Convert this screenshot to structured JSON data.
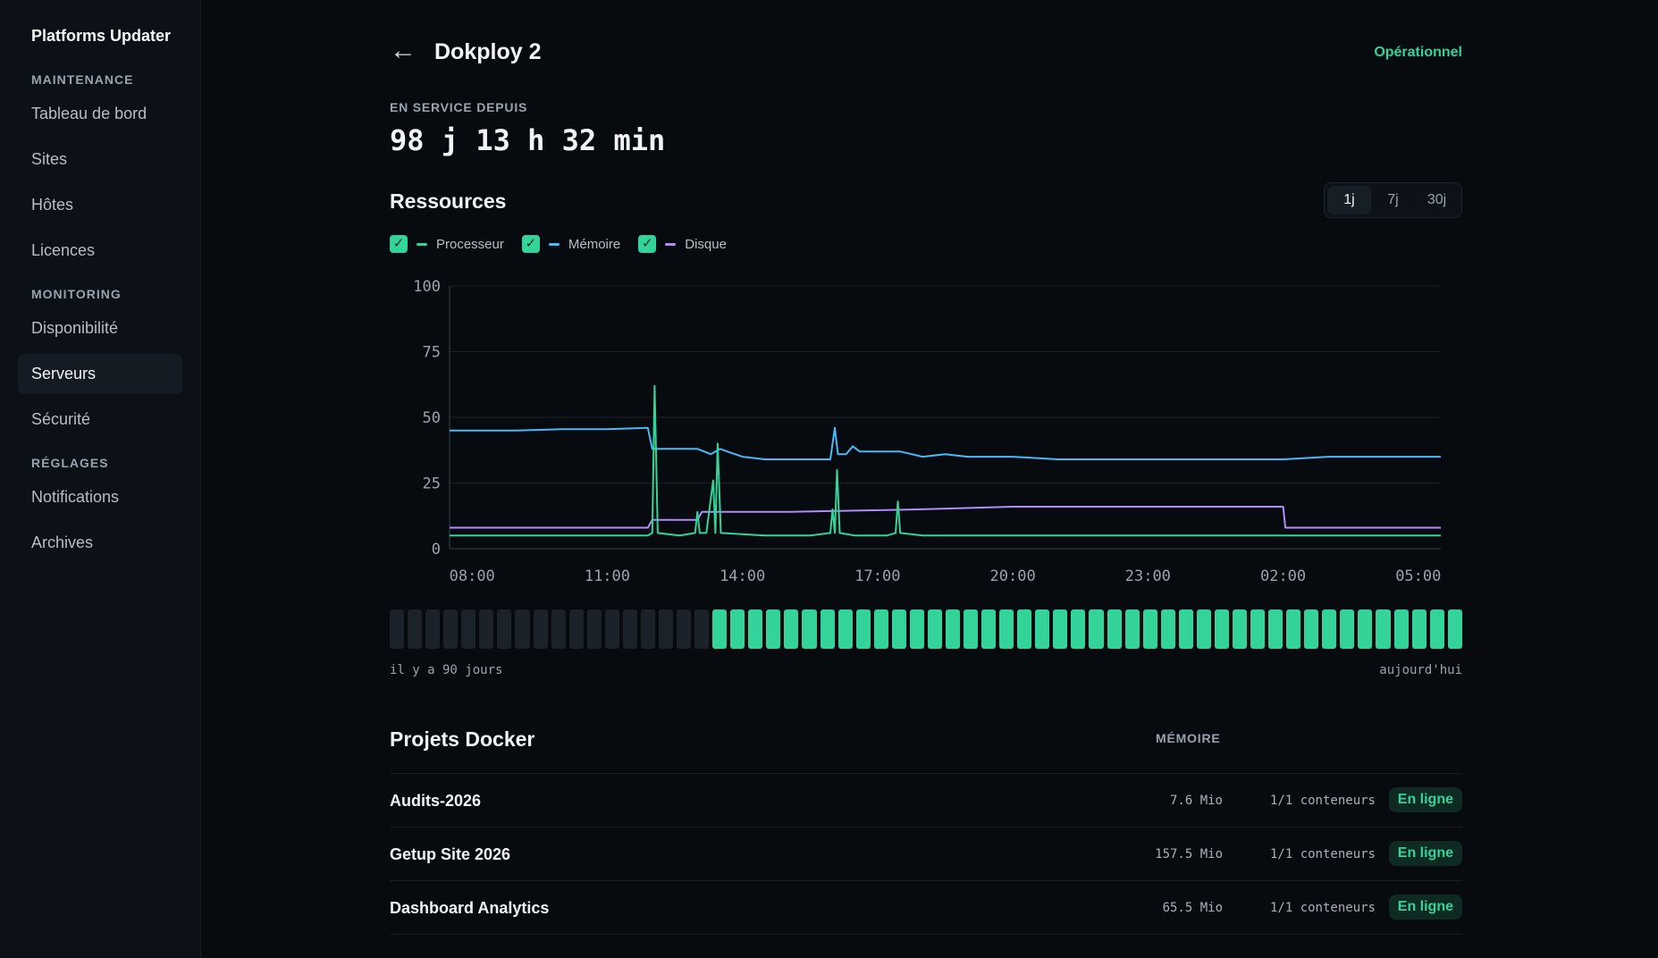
{
  "sidebar": {
    "brand": "Platforms Updater",
    "sections": [
      {
        "label": "MAINTENANCE",
        "items": [
          "Tableau de bord",
          "Sites",
          "Hôtes",
          "Licences"
        ]
      },
      {
        "label": "MONITORING",
        "items": [
          "Disponibilité",
          "Serveurs",
          "Sécurité"
        ]
      },
      {
        "label": "RÉGLAGES",
        "items": [
          "Notifications",
          "Archives"
        ]
      }
    ],
    "active": "Serveurs"
  },
  "header": {
    "back_glyph": "←",
    "title": "Dokploy 2",
    "status": "Opérationnel"
  },
  "uptime": {
    "label": "EN SERVICE DEPUIS",
    "value": "98 j 13 h 32 min"
  },
  "resources": {
    "title": "Ressources",
    "ranges": [
      "1j",
      "7j",
      "30j"
    ],
    "active_range": "1j",
    "legend": [
      {
        "label": "Processeur",
        "color": "#34d399"
      },
      {
        "label": "Mémoire",
        "color": "#4cb8f5"
      },
      {
        "label": "Disque",
        "color": "#b38cf7"
      }
    ]
  },
  "chart_data": {
    "type": "line",
    "ylim": [
      0,
      100
    ],
    "yticks": [
      "0",
      "25",
      "50",
      "75",
      "100"
    ],
    "xlim": [
      7.5,
      29.5
    ],
    "xticks": [
      {
        "h": 8,
        "label": "08:00"
      },
      {
        "h": 11,
        "label": "11:00"
      },
      {
        "h": 14,
        "label": "14:00"
      },
      {
        "h": 17,
        "label": "17:00"
      },
      {
        "h": 20,
        "label": "20:00"
      },
      {
        "h": 23,
        "label": "23:00"
      },
      {
        "h": 26,
        "label": "02:00"
      },
      {
        "h": 29,
        "label": "05:00"
      }
    ],
    "series": [
      {
        "name": "Processeur",
        "color": "#34d399",
        "points": [
          [
            7.5,
            5
          ],
          [
            9,
            5
          ],
          [
            10.5,
            5
          ],
          [
            11.5,
            5
          ],
          [
            11.9,
            5
          ],
          [
            12,
            6
          ],
          [
            12.05,
            62
          ],
          [
            12.12,
            6
          ],
          [
            12.6,
            5
          ],
          [
            12.95,
            6
          ],
          [
            13.0,
            14
          ],
          [
            13.05,
            6
          ],
          [
            13.2,
            6
          ],
          [
            13.35,
            26
          ],
          [
            13.4,
            6
          ],
          [
            13.45,
            40
          ],
          [
            13.52,
            6
          ],
          [
            14.5,
            5
          ],
          [
            15.5,
            5
          ],
          [
            15.95,
            6
          ],
          [
            16.0,
            15
          ],
          [
            16.05,
            6
          ],
          [
            16.1,
            30
          ],
          [
            16.16,
            6
          ],
          [
            16.5,
            5
          ],
          [
            17.2,
            5
          ],
          [
            17.4,
            6
          ],
          [
            17.45,
            18
          ],
          [
            17.5,
            6
          ],
          [
            18,
            5
          ],
          [
            20,
            5
          ],
          [
            22,
            5
          ],
          [
            24,
            5
          ],
          [
            26,
            5
          ],
          [
            28,
            5
          ],
          [
            29.5,
            5
          ]
        ]
      },
      {
        "name": "Mémoire",
        "color": "#4cb8f5",
        "points": [
          [
            7.5,
            45
          ],
          [
            9,
            45
          ],
          [
            10,
            45.5
          ],
          [
            11,
            45.5
          ],
          [
            11.9,
            46
          ],
          [
            12.0,
            38
          ],
          [
            13,
            38
          ],
          [
            13.3,
            36
          ],
          [
            13.5,
            38
          ],
          [
            14,
            35
          ],
          [
            14.5,
            34
          ],
          [
            15,
            34
          ],
          [
            15.5,
            34
          ],
          [
            15.95,
            34
          ],
          [
            16.05,
            46
          ],
          [
            16.12,
            36
          ],
          [
            16.3,
            36
          ],
          [
            16.45,
            39
          ],
          [
            16.6,
            37
          ],
          [
            17.5,
            37
          ],
          [
            18,
            35
          ],
          [
            18.5,
            36
          ],
          [
            19,
            35
          ],
          [
            20,
            35
          ],
          [
            21,
            34
          ],
          [
            22,
            34
          ],
          [
            23,
            34
          ],
          [
            24,
            34
          ],
          [
            25,
            34
          ],
          [
            26,
            34
          ],
          [
            27,
            35
          ],
          [
            28,
            35
          ],
          [
            29.5,
            35
          ]
        ]
      },
      {
        "name": "Disque",
        "color": "#b38cf7",
        "points": [
          [
            7.5,
            8
          ],
          [
            11.9,
            8
          ],
          [
            12.0,
            11
          ],
          [
            13.0,
            11
          ],
          [
            13.1,
            14
          ],
          [
            15.0,
            14
          ],
          [
            18.0,
            15
          ],
          [
            20.0,
            16
          ],
          [
            26.0,
            16
          ],
          [
            26.05,
            8
          ],
          [
            29.5,
            8
          ]
        ]
      }
    ]
  },
  "availability": {
    "bars_total": 60,
    "bars_down": 18,
    "left_label": "il y a 90 jours",
    "right_label": "aujourd'hui"
  },
  "projects": {
    "title": "Projets Docker",
    "memory_header": "MÉMOIRE",
    "rows": [
      {
        "name": "Audits-2026",
        "memory": "7.6 Mio",
        "containers": "1/1 conteneurs",
        "status": "En ligne"
      },
      {
        "name": "Getup Site 2026",
        "memory": "157.5 Mio",
        "containers": "1/1 conteneurs",
        "status": "En ligne"
      },
      {
        "name": "Dashboard Analytics",
        "memory": "65.5 Mio",
        "containers": "1/1 conteneurs",
        "status": "En ligne"
      }
    ]
  }
}
